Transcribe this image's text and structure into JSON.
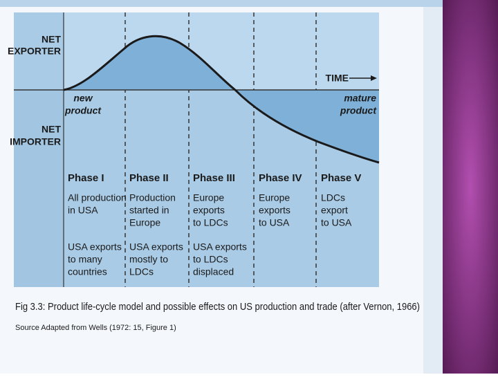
{
  "figure": {
    "exporter_label": [
      "NET",
      "EXPORTER"
    ],
    "importer_label": [
      "NET",
      "IMPORTER"
    ],
    "time_label": "TIME",
    "new_product": [
      "new",
      "product"
    ],
    "mature_product": [
      "mature",
      "product"
    ],
    "phases": [
      {
        "name": "Phase I",
        "production": [
          "All production",
          "in USA"
        ],
        "effects": [
          "USA exports",
          "to many",
          "countries"
        ]
      },
      {
        "name": "Phase II",
        "production": [
          "Production",
          "started in",
          "Europe"
        ],
        "effects": [
          "USA exports",
          "mostly to",
          "LDCs"
        ]
      },
      {
        "name": "Phase III",
        "production": [
          "Europe",
          "exports",
          "to LDCs"
        ],
        "effects": [
          "USA exports",
          "to LDCs",
          "displaced"
        ]
      },
      {
        "name": "Phase IV",
        "production": [
          "Europe",
          "exports",
          "to USA"
        ]
      },
      {
        "name": "Phase V",
        "production": [
          "LDCs",
          "export",
          "to USA"
        ]
      }
    ],
    "caption": "Fig 3.3: Product life-cycle model and possible effects on US production and trade (after Vernon, 1966)",
    "source": "Source Adapted from Wells (1972: 15, Figure 1)"
  }
}
